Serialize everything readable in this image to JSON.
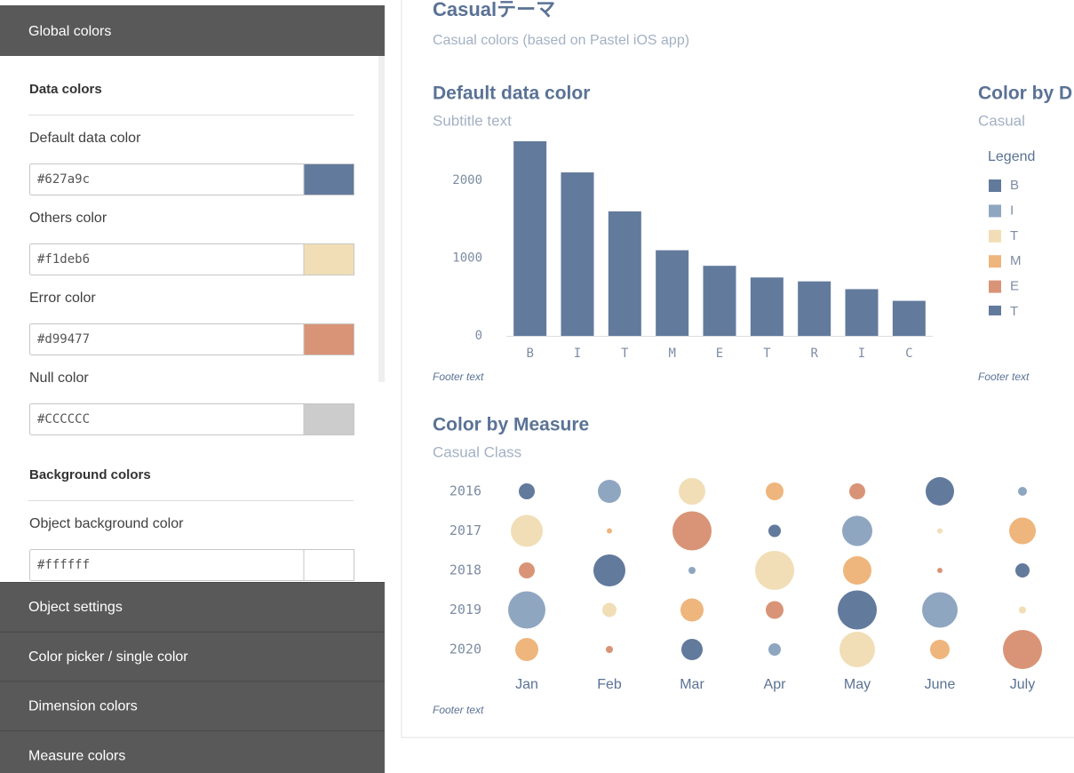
{
  "sidebar": {
    "header": "Global colors",
    "sections": [
      {
        "heading": "Data colors",
        "fields": [
          {
            "label": "Default data color",
            "value": "#627a9c"
          },
          {
            "label": "Others color",
            "value": "#f1deb6"
          },
          {
            "label": "Error color",
            "value": "#d99477"
          },
          {
            "label": "Null color",
            "value": "#CCCCCC"
          }
        ]
      },
      {
        "heading": "Background colors",
        "fields": [
          {
            "label": "Object background color",
            "value": "#ffffff"
          }
        ]
      }
    ],
    "menu": [
      "Object settings",
      "Color picker / single color",
      "Dimension colors",
      "Measure colors"
    ]
  },
  "theme": {
    "title": "Casualテーマ",
    "subtitle": "Casual colors (based on Pastel iOS app)"
  },
  "chart_data": [
    {
      "type": "bar",
      "title": "Default data color",
      "subtitle": "Subtitle text",
      "footer": "Footer text",
      "categories": [
        "B",
        "I",
        "T",
        "M",
        "E",
        "T",
        "R",
        "I",
        "C"
      ],
      "values": [
        2500,
        2100,
        1600,
        1100,
        900,
        750,
        700,
        600,
        450
      ],
      "color": "#627a9c",
      "ylim": [
        0,
        2500
      ],
      "yticks": [
        0,
        1000,
        2000
      ],
      "grid": false
    },
    {
      "type": "legend",
      "title": "Color by D",
      "subtitle": "Casual",
      "footer": "Footer text",
      "legend_title": "Legend",
      "series": [
        {
          "name": "B",
          "color": "#627a9c"
        },
        {
          "name": "I",
          "color": "#8fa6c0"
        },
        {
          "name": "T",
          "color": "#f1deb6"
        },
        {
          "name": "M",
          "color": "#eeb57c"
        },
        {
          "name": "E",
          "color": "#d99477"
        },
        {
          "name": "T",
          "color": "#627a9c"
        }
      ]
    },
    {
      "type": "bubble",
      "title": "Color by Measure",
      "subtitle": "Casual Class",
      "footer": "Footer text",
      "x": [
        "Jan",
        "Feb",
        "Mar",
        "Apr",
        "May",
        "June",
        "July"
      ],
      "y": [
        "2016",
        "2017",
        "2018",
        "2019",
        "2020"
      ],
      "values": [
        [
          9,
          13,
          15,
          10,
          9,
          16,
          5
        ],
        [
          18,
          3,
          22,
          7,
          17,
          3,
          15
        ],
        [
          9,
          18,
          4,
          22,
          16,
          3,
          8
        ],
        [
          21,
          8,
          13,
          10,
          22,
          20,
          4
        ],
        [
          13,
          4,
          12,
          7,
          20,
          11,
          22
        ]
      ],
      "colors": [
        [
          "#627a9c",
          "#8fa6c0",
          "#f1deb6",
          "#eeb57c",
          "#d99477",
          "#627a9c",
          "#8fa6c0"
        ],
        [
          "#f1deb6",
          "#eeb57c",
          "#d99477",
          "#627a9c",
          "#8fa6c0",
          "#f1deb6",
          "#eeb57c"
        ],
        [
          "#d99477",
          "#627a9c",
          "#8fa6c0",
          "#f1deb6",
          "#eeb57c",
          "#d99477",
          "#627a9c"
        ],
        [
          "#8fa6c0",
          "#f1deb6",
          "#eeb57c",
          "#d99477",
          "#627a9c",
          "#8fa6c0",
          "#f1deb6"
        ],
        [
          "#eeb57c",
          "#d99477",
          "#627a9c",
          "#8fa6c0",
          "#f1deb6",
          "#eeb57c",
          "#d99477"
        ]
      ]
    }
  ]
}
